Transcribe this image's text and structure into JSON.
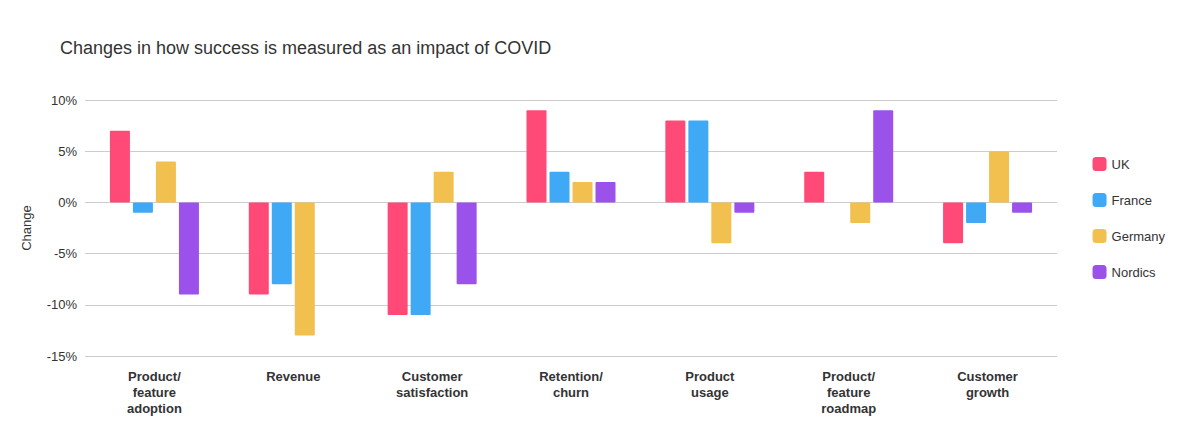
{
  "chart_data": {
    "type": "bar",
    "title": "Changes in how success is measured as an impact of COVID",
    "y_label": "Change",
    "categories": [
      "Product/\nfeature\nadoption",
      "Revenue",
      "Customer\nsatisfaction",
      "Retention/\nchurn",
      "Product\nusage",
      "Product/\nfeature\nroadmap",
      "Customer\ngrowth"
    ],
    "series": [
      {
        "name": "UK",
        "color": "#ff4a78",
        "values": [
          7,
          -9,
          -11,
          9,
          8,
          3,
          -4
        ]
      },
      {
        "name": "France",
        "color": "#3fa9f5",
        "values": [
          -1,
          -8,
          -11,
          3,
          8,
          null,
          -2
        ]
      },
      {
        "name": "Germany",
        "color": "#f2c04f",
        "values": [
          4,
          -13,
          3,
          2,
          -4,
          -2,
          5
        ]
      },
      {
        "name": "Nordics",
        "color": "#9a52ea",
        "values": [
          -9,
          null,
          -8,
          2,
          -1,
          9,
          -1
        ]
      }
    ],
    "ylim": [
      -15,
      10
    ],
    "yticks": [
      {
        "value": -15,
        "label": "-15%"
      },
      {
        "value": -10,
        "label": "-10%"
      },
      {
        "value": -5,
        "label": "-5%"
      },
      {
        "value": 0,
        "label": "0%"
      },
      {
        "value": 5,
        "label": "5%"
      },
      {
        "value": 10,
        "label": "10%"
      }
    ],
    "grid": true,
    "legend": "right"
  }
}
